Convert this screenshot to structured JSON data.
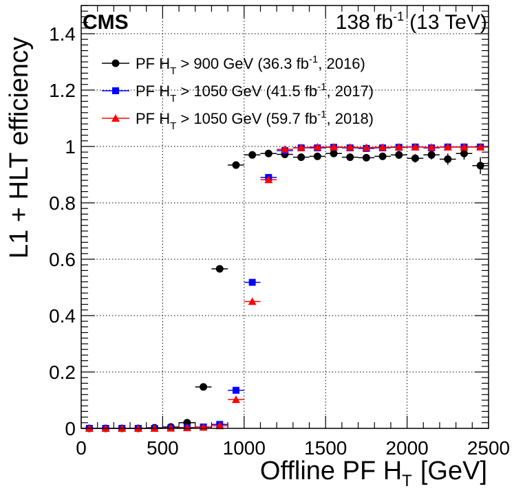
{
  "header": {
    "experiment": "CMS",
    "lumi_value": "138 fb",
    "lumi_exponent": "-1",
    "energy": "(13 TeV)"
  },
  "chart_data": {
    "type": "scatter",
    "title": "",
    "xlabel_main": "Offline PF H",
    "xlabel_sub": "T",
    "xlabel_unit": "[GeV]",
    "ylabel": "L1 + HLT efficiency",
    "xlim": [
      0,
      2500
    ],
    "ylim": [
      0,
      1.5
    ],
    "x_ticks": [
      0,
      500,
      1000,
      1500,
      2000,
      2500
    ],
    "y_ticks": [
      0,
      0.2,
      0.4,
      0.6,
      0.8,
      1,
      1.2,
      1.4
    ],
    "y_tick_labels": [
      "0",
      "0.2",
      "0.4",
      "0.6",
      "0.8",
      "1",
      "1.2",
      "1.4"
    ],
    "grid": true,
    "legend_position": "top-left",
    "bin_width": 100,
    "x": [
      50,
      150,
      250,
      350,
      450,
      550,
      650,
      750,
      850,
      950,
      1050,
      1150,
      1250,
      1350,
      1450,
      1550,
      1650,
      1750,
      1850,
      1950,
      2050,
      2150,
      2250,
      2350,
      2450
    ],
    "series": [
      {
        "name": "PF H_T > 900 GeV (36.3 fb^-1, 2016)",
        "legend": {
          "pre": "PF H",
          "sub": "T",
          "mid": " > 900 GeV (36.3 fb",
          "sup": "-1",
          "post": ", 2016)"
        },
        "color": "#000000",
        "marker": "circle",
        "values": [
          0.0,
          0.0,
          0.0,
          0.0,
          0.002,
          0.005,
          0.02,
          0.147,
          0.566,
          0.934,
          0.97,
          0.975,
          0.972,
          0.962,
          0.965,
          0.975,
          0.962,
          0.96,
          0.965,
          0.97,
          0.958,
          0.97,
          0.955,
          0.975,
          0.932
        ],
        "errors": [
          0,
          0,
          0,
          0,
          0.001,
          0.002,
          0.003,
          0.005,
          0.005,
          0.006,
          0.006,
          0.007,
          0.008,
          0.009,
          0.01,
          0.01,
          0.011,
          0.012,
          0.012,
          0.014,
          0.015,
          0.016,
          0.02,
          0.022,
          0.03
        ]
      },
      {
        "name": "PF H_T > 1050 GeV (41.5 fb^-1, 2017)",
        "legend": {
          "pre": "PF H",
          "sub": "T",
          "mid": " > 1050 GeV (41.5 fb",
          "sup": "-1",
          "post": ", 2017)"
        },
        "color": "#0000ff",
        "marker": "square",
        "values": [
          0.0,
          0.0,
          0.0,
          0.0,
          0.0,
          0.001,
          0.003,
          0.005,
          0.014,
          0.135,
          0.518,
          0.89,
          0.985,
          0.995,
          0.995,
          0.997,
          0.995,
          0.993,
          0.995,
          0.997,
          0.998,
          0.995,
          0.998,
          0.998,
          0.998
        ],
        "errors": [
          0,
          0,
          0,
          0,
          0,
          0.001,
          0.001,
          0.002,
          0.003,
          0.005,
          0.006,
          0.005,
          0.003,
          0.002,
          0.002,
          0.002,
          0.002,
          0.002,
          0.002,
          0.002,
          0.002,
          0.002,
          0.002,
          0.002,
          0.002
        ]
      },
      {
        "name": "PF H_T > 1050 GeV (59.7 fb^-1, 2018)",
        "legend": {
          "pre": "PF H",
          "sub": "T",
          "mid": " > 1050 GeV (59.7 fb",
          "sup": "-1",
          "post": ", 2018)"
        },
        "color": "#ff0000",
        "marker": "triangle",
        "values": [
          0.0,
          0.0,
          0.0,
          0.0,
          0.0,
          0.001,
          0.002,
          0.004,
          0.009,
          0.102,
          0.45,
          0.882,
          0.99,
          0.996,
          0.998,
          0.998,
          0.997,
          0.996,
          0.997,
          0.998,
          0.998,
          0.997,
          0.998,
          0.998,
          0.998
        ],
        "errors": [
          0,
          0,
          0,
          0,
          0,
          0.001,
          0.001,
          0.001,
          0.002,
          0.004,
          0.005,
          0.004,
          0.002,
          0.001,
          0.001,
          0.001,
          0.001,
          0.001,
          0.001,
          0.001,
          0.001,
          0.001,
          0.001,
          0.001,
          0.001
        ]
      }
    ]
  }
}
